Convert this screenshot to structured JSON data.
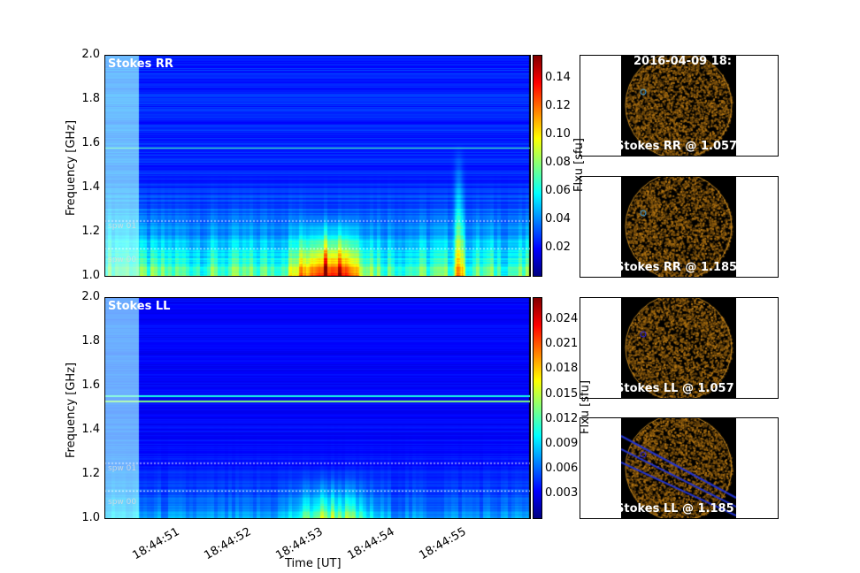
{
  "chart_data": [
    {
      "type": "heatmap",
      "title": "Stokes RR",
      "xlabel": "",
      "ylabel": "Frequency [GHz]",
      "ylim": [
        1.0,
        2.0
      ],
      "yticks": [
        "1.0",
        "1.2",
        "1.4",
        "1.6",
        "1.8",
        "2.0"
      ],
      "xticks": [
        "18:44:51",
        "18:44:52",
        "18:44:53",
        "18:44:54",
        "18:44:55"
      ],
      "colorbar": {
        "label": "Flxu [sfu]",
        "range": [
          0,
          0.156
        ],
        "ticks": [
          "0.02",
          "0.04",
          "0.06",
          "0.08",
          "0.10",
          "0.12",
          "0.14"
        ],
        "colormap": "jet"
      },
      "spw_labels": [
        "spw 01",
        "spw 00"
      ],
      "spw_boundaries_ghz": [
        1.125,
        1.25
      ]
    },
    {
      "type": "heatmap",
      "title": "Stokes LL",
      "xlabel": "Time [UT]",
      "ylabel": "Frequency [GHz]",
      "ylim": [
        1.0,
        2.0
      ],
      "yticks": [
        "1.0",
        "1.2",
        "1.4",
        "1.6",
        "1.8",
        "2.0"
      ],
      "xticks": [
        "18:44:51",
        "18:44:52",
        "18:44:53",
        "18:44:54",
        "18:44:55"
      ],
      "colorbar": {
        "label": "Flxu [sfu]",
        "range": [
          0,
          0.0267
        ],
        "ticks": [
          "0.003",
          "0.006",
          "0.009",
          "0.012",
          "0.015",
          "0.018",
          "0.021",
          "0.024"
        ],
        "colormap": "jet"
      },
      "spw_labels": [
        "spw 01",
        "spw 00"
      ],
      "spw_boundaries_ghz": [
        1.125,
        1.25
      ]
    }
  ],
  "images": {
    "timestamp": "2016-04-09 18:",
    "labels": [
      "Stokes RR @ 1.057",
      "Stokes RR @ 1.185",
      "Stokes LL @ 1.057",
      "Stokes LL @ 1.185"
    ]
  }
}
